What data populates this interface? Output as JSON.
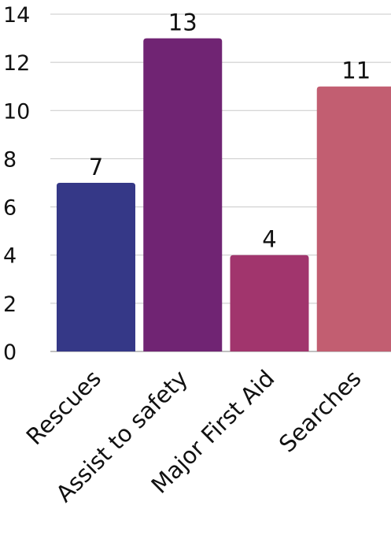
{
  "chart_data": {
    "type": "bar",
    "categories": [
      "Rescues",
      "Assist to safety",
      "Major First Aid",
      "Searches"
    ],
    "values": [
      7,
      13,
      4,
      11
    ],
    "data_labels": [
      "7",
      "13",
      "4",
      "11"
    ],
    "ylim": [
      0,
      14
    ],
    "y_ticks": [
      0,
      2,
      4,
      6,
      8,
      10,
      12,
      14
    ],
    "y_tick_labels": [
      "0",
      "2",
      "4",
      "6",
      "8",
      "10",
      "12",
      "14"
    ],
    "colors": [
      "#353887",
      "#702473",
      "#a1356d",
      "#c25e71"
    ],
    "grid": true,
    "legend": "none",
    "title": "",
    "xlabel": "",
    "ylabel": ""
  }
}
